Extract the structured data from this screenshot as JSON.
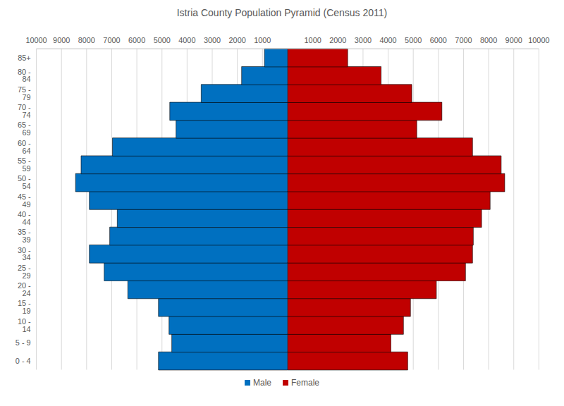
{
  "chart_data": {
    "type": "bar",
    "orientation": "horizontal",
    "title": "Istria County Population Pyramid (Census 2011)",
    "categories": [
      "0 - 4",
      "5 - 9",
      "10 - 14",
      "15 - 19",
      "20 - 24",
      "25 - 29",
      "30 - 34",
      "35 - 39",
      "40 - 44",
      "45 - 49",
      "50 - 54",
      "55 - 59",
      "60 - 64",
      "65 - 69",
      "70 - 74",
      "75 - 79",
      "80 - 84",
      "85+"
    ],
    "series": [
      {
        "name": "Male",
        "color": "#0070c0",
        "values": [
          5140,
          4610,
          4720,
          5140,
          6360,
          7300,
          7890,
          7080,
          6780,
          7890,
          8440,
          8220,
          6970,
          4440,
          4690,
          3440,
          1830,
          920
        ]
      },
      {
        "name": "Female",
        "color": "#c00000",
        "values": [
          4780,
          4110,
          4610,
          4890,
          5920,
          7080,
          7360,
          7390,
          7720,
          8060,
          8640,
          8500,
          7360,
          5140,
          6140,
          4940,
          3720,
          2390
        ]
      }
    ],
    "xlim": [
      0,
      10000
    ],
    "xticks": [
      1000,
      2000,
      3000,
      4000,
      5000,
      6000,
      7000,
      8000,
      9000,
      10000
    ],
    "grid": true,
    "legend": "bottom"
  }
}
